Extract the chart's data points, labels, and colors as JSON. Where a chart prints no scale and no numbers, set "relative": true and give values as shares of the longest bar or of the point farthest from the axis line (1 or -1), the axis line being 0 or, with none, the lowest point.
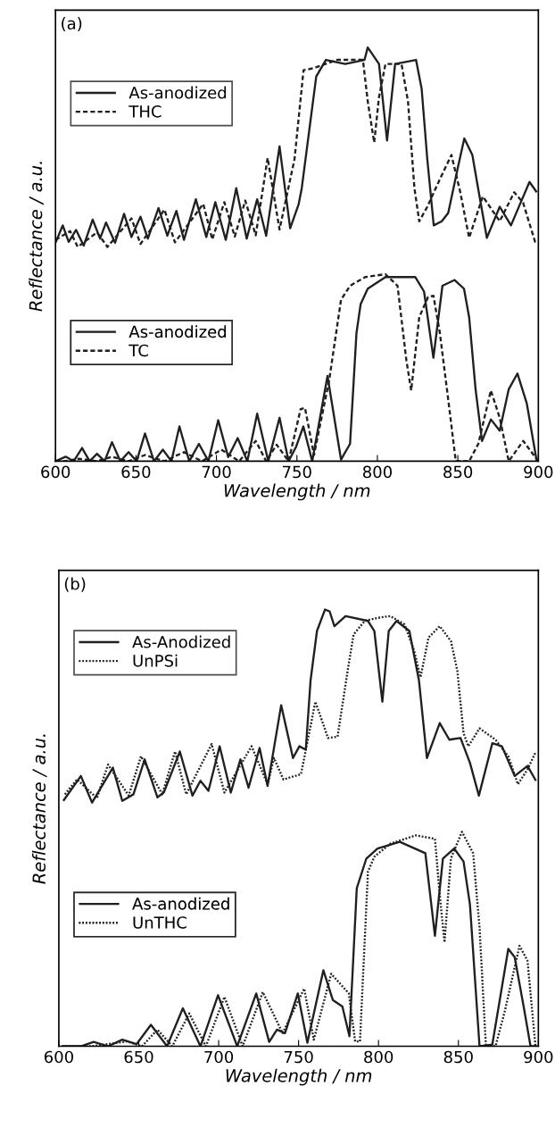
{
  "chart_data": [
    {
      "type": "line",
      "relative": true,
      "xlabel": "Wavelength / nm",
      "ylabel": "Reflectance / a.u.",
      "annotations": [
        "(a)"
      ],
      "xlim": [
        600,
        900
      ],
      "xticks": [
        600,
        650,
        700,
        750,
        800,
        850,
        900
      ],
      "tick_labels": "x",
      "legend": "top left",
      "grid": false,
      "series": [
        {
          "name": "As-anodized",
          "color": "#231f20",
          "line_style": "solid",
          "x": [
            600,
            604.5,
            608.2,
            612.8,
            617.5,
            623.1,
            627.7,
            631.4,
            637.0,
            642.6,
            647.2,
            652.8,
            657.4,
            664.0,
            669.5,
            675.1,
            679.8,
            687.2,
            693.7,
            699.3,
            705.8,
            712.3,
            718.8,
            725.3,
            730.9,
            739.2,
            745.8,
            751,
            753,
            762,
            768,
            780,
            792,
            794,
            801,
            806,
            811,
            824,
            827.5,
            831,
            835,
            840,
            844,
            850,
            854,
            859,
            863,
            868,
            876,
            883,
            889,
            894.5,
            899
          ],
          "values": [
            0.528,
            0.57,
            0.53,
            0.559,
            0.521,
            0.584,
            0.538,
            0.577,
            0.528,
            0.598,
            0.542,
            0.591,
            0.538,
            0.612,
            0.545,
            0.605,
            0.535,
            0.633,
            0.542,
            0.626,
            0.535,
            0.66,
            0.538,
            0.633,
            0.545,
            0.761,
            0.563,
            0.62,
            0.66,
            0.93,
            0.97,
            0.96,
            0.97,
            1.0,
            0.96,
            0.775,
            0.96,
            0.97,
            0.9,
            0.73,
            0.57,
            0.58,
            0.6,
            0.71,
            0.78,
            0.74,
            0.65,
            0.54,
            0.615,
            0.57,
            0.625,
            0.675,
            0.65
          ]
        },
        {
          "name": "THC",
          "color": "#231f20",
          "line_style": "dashed",
          "x": [
            600,
            609.1,
            613.8,
            625.8,
            632.3,
            647.2,
            652.8,
            667.7,
            674.2,
            691.8,
            697.4,
            704.9,
            711.4,
            717.9,
            724.4,
            731.8,
            739.2,
            748.5,
            754.1,
            760.4,
            775,
            791,
            794,
            798,
            801,
            805,
            815,
            819,
            823,
            826,
            831,
            838.6,
            846,
            851.5,
            857,
            865.5,
            876,
            885,
            890.5,
            898,
            900
          ],
          "values": [
            0.535,
            0.556,
            0.518,
            0.553,
            0.518,
            0.587,
            0.525,
            0.608,
            0.529,
            0.622,
            0.536,
            0.626,
            0.543,
            0.63,
            0.546,
            0.733,
            0.56,
            0.73,
            0.945,
            0.95,
            0.97,
            0.97,
            0.87,
            0.77,
            0.88,
            0.96,
            0.96,
            0.87,
            0.66,
            0.58,
            0.615,
            0.68,
            0.74,
            0.65,
            0.54,
            0.64,
            0.58,
            0.65,
            0.625,
            0.53,
            0.53
          ]
        },
        {
          "name": "As-anodized",
          "color": "#231f20",
          "line_style": "solid",
          "x": [
            600,
            606.3,
            611.3,
            616.5,
            621.2,
            625.8,
            630.5,
            635.1,
            640.3,
            645.4,
            650.4,
            655.6,
            661.2,
            666.7,
            672.0,
            677.0,
            683.1,
            689.1,
            695.0,
            701.1,
            707.3,
            713.2,
            719.2,
            725.3,
            732.2,
            739.2,
            744.8,
            749.5,
            754,
            759.5,
            769,
            777.4,
            783,
            787,
            789.6,
            794,
            805,
            823.6,
            829,
            834.8,
            840.4,
            848,
            853.8,
            857,
            861,
            865,
            870.5,
            876,
            881.6,
            887,
            892.8,
            899
          ],
          "values": [
            0.0,
            0.011,
            0.0,
            0.032,
            0.0,
            0.018,
            0.0,
            0.046,
            0.0,
            0.022,
            0.0,
            0.067,
            0.0,
            0.028,
            0.0,
            0.084,
            0.0,
            0.042,
            0.0,
            0.099,
            0.01,
            0.056,
            0.0,
            0.115,
            0.0,
            0.105,
            0.0,
            0.035,
            0.084,
            0.0,
            0.206,
            0.004,
            0.042,
            0.31,
            0.38,
            0.417,
            0.445,
            0.445,
            0.41,
            0.25,
            0.424,
            0.438,
            0.417,
            0.348,
            0.174,
            0.049,
            0.101,
            0.074,
            0.174,
            0.212,
            0.14,
            0.0
          ]
        },
        {
          "name": "TC",
          "color": "#231f20",
          "line_style": "dashed",
          "x": [
            600,
            605.4,
            614.7,
            625.8,
            635.1,
            645.4,
            655.6,
            667.7,
            679.8,
            691,
            703,
            714.1,
            724.4,
            730.9,
            737.4,
            744.8,
            752.3,
            755,
            760.6,
            770,
            777.4,
            783,
            792.4,
            805,
            812.5,
            818,
            821,
            826,
            831.5,
            834.8,
            838.7,
            844.3,
            848.7,
            857,
            862.7,
            870.5,
            876,
            881.6,
            890.6,
            898.4,
            900
          ],
          "values": [
            0.0,
            0.0,
            0.006,
            0.0,
            0.011,
            0.0,
            0.015,
            0.0,
            0.022,
            0.0,
            0.028,
            0.0,
            0.049,
            0.0,
            0.04,
            0.0,
            0.126,
            0.129,
            0.015,
            0.195,
            0.39,
            0.424,
            0.445,
            0.452,
            0.424,
            0.244,
            0.171,
            0.348,
            0.397,
            0.4,
            0.313,
            0.14,
            0.0,
            0.0,
            0.042,
            0.171,
            0.105,
            0.0,
            0.049,
            0.008,
            0.0
          ]
        }
      ]
    },
    {
      "type": "line",
      "relative": true,
      "xlabel": "Wavelength / nm",
      "ylabel": "Reflectance / a.u.",
      "annotations": [
        "(b)"
      ],
      "xlim": [
        600,
        900
      ],
      "xticks": [
        600,
        650,
        700,
        750,
        800,
        850,
        900
      ],
      "tick_labels": "x",
      "legend": "top left",
      "grid": false,
      "series": [
        {
          "name": "As-Anodized",
          "color": "#231f20",
          "line_style": "solid",
          "x": [
            602.8,
            613.8,
            620.8,
            633.8,
            639.7,
            646.7,
            653.7,
            661.7,
            665.7,
            675.7,
            683.6,
            688.6,
            693.6,
            700.6,
            707.6,
            713.6,
            718.7,
            725.6,
            730.6,
            739.1,
            746.5,
            750.5,
            754.5,
            757.5,
            761.5,
            766.5,
            769.4,
            772.4,
            779.4,
            793.4,
            797.4,
            802.4,
            806.4,
            811.3,
            819.3,
            825.3,
            830.3,
            838.3,
            844.3,
            851.3,
            857.2,
            862.8,
            871.2,
            877.2,
            885.2,
            893.2,
            898.5
          ],
          "values": [
            0.562,
            0.619,
            0.558,
            0.638,
            0.562,
            0.577,
            0.657,
            0.57,
            0.581,
            0.675,
            0.574,
            0.608,
            0.585,
            0.687,
            0.581,
            0.657,
            0.592,
            0.683,
            0.596,
            0.781,
            0.66,
            0.687,
            0.679,
            0.838,
            0.951,
            1.0,
            0.996,
            0.962,
            0.985,
            0.974,
            0.951,
            0.789,
            0.951,
            0.974,
            0.951,
            0.838,
            0.66,
            0.74,
            0.702,
            0.706,
            0.649,
            0.574,
            0.694,
            0.687,
            0.619,
            0.642,
            0.608
          ]
        },
        {
          "name": "UnPSi",
          "color": "#231f20",
          "line_style": "dotted",
          "x": [
            603.8,
            611.4,
            623.8,
            630.8,
            643.7,
            651.4,
            664.7,
            672.7,
            679.7,
            695.6,
            703.6,
            720.6,
            730.6,
            734.6,
            740.5,
            751.5,
            760.5,
            768.4,
            774.4,
            780.4,
            784.4,
            791.4,
            799.4,
            807.4,
            816.3,
            822.3,
            826.3,
            831.3,
            838.3,
            845.3,
            849.3,
            853.2,
            856.2,
            863.2,
            873.2,
            881.2,
            887.2,
            893.2,
            898.5
          ],
          "values": [
            0.577,
            0.611,
            0.568,
            0.645,
            0.574,
            0.664,
            0.577,
            0.675,
            0.577,
            0.692,
            0.581,
            0.687,
            0.6,
            0.66,
            0.611,
            0.623,
            0.789,
            0.706,
            0.709,
            0.853,
            0.943,
            0.974,
            0.981,
            0.985,
            0.966,
            0.906,
            0.845,
            0.936,
            0.962,
            0.928,
            0.86,
            0.717,
            0.687,
            0.728,
            0.702,
            0.664,
            0.6,
            0.634,
            0.675
          ]
        },
        {
          "name": "As-anodized",
          "color": "#231f20",
          "line_style": "solid",
          "x": [
            602,
            613.8,
            621.8,
            630.8,
            639.7,
            648.7,
            657.6,
            667.7,
            677.6,
            688.6,
            699.6,
            711.6,
            723.5,
            731.6,
            736.5,
            741.5,
            749.5,
            755.5,
            765.5,
            771.4,
            777.4,
            781.8,
            786.4,
            792.4,
            799.4,
            813.3,
            829.3,
            835.3,
            840.3,
            847.3,
            853.2,
            857.2,
            863.2,
            871.2,
            881.2,
            885.2,
            891.2,
            895.1,
            899
          ],
          "values": [
            0.0,
            0.0,
            0.01,
            0.0,
            0.015,
            0.005,
            0.049,
            0.0,
            0.087,
            0.0,
            0.117,
            0.0,
            0.121,
            0.01,
            0.038,
            0.03,
            0.121,
            0.008,
            0.174,
            0.106,
            0.091,
            0.023,
            0.362,
            0.43,
            0.453,
            0.468,
            0.442,
            0.253,
            0.43,
            0.453,
            0.423,
            0.325,
            0.0,
            0.004,
            0.223,
            0.204,
            0.083,
            0.0,
            0.0
          ]
        },
        {
          "name": "UnTHC",
          "color": "#231f20",
          "line_style": "dotted",
          "x": [
            602,
            620.8,
            642.7,
            652,
            661.7,
            671,
            681.6,
            692,
            703.6,
            715,
            727.6,
            740,
            753.5,
            759.5,
            770.4,
            781.4,
            785.4,
            788.4,
            793.4,
            797.4,
            807.4,
            823.3,
            835.3,
            838.3,
            841.3,
            845.3,
            852.2,
            859.2,
            863.2,
            867.2,
            873.2,
            879.2,
            888.2,
            893.2,
            898.2
          ],
          "values": [
            0.0,
            0.0,
            0.011,
            0.0,
            0.038,
            0.0,
            0.075,
            0.0,
            0.113,
            0.0,
            0.124,
            0.03,
            0.132,
            0.015,
            0.166,
            0.121,
            0.011,
            0.011,
            0.4,
            0.434,
            0.464,
            0.483,
            0.475,
            0.347,
            0.238,
            0.43,
            0.491,
            0.442,
            0.272,
            0.0,
            0.0,
            0.083,
            0.23,
            0.196,
            0.0
          ]
        }
      ]
    }
  ]
}
